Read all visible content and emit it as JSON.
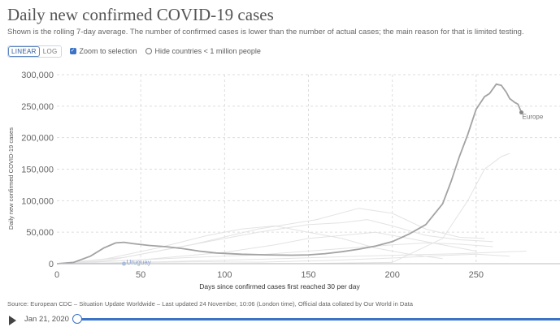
{
  "header": {
    "title": "Daily new confirmed COVID-19 cases",
    "subtitle": "Shown is the rolling 7-day average. The number of confirmed cases is lower than the number of actual cases; the main reason for that is limited testing."
  },
  "controls": {
    "linear_label": "LINEAR",
    "log_label": "LOG",
    "active_scale": "linear",
    "zoom_label": "Zoom to selection",
    "zoom_checked": true,
    "hide_label": "Hide countries < 1 million people",
    "hide_checked": false
  },
  "footer": {
    "source": "Source: European CDC – Situation Update Worldwide – Last updated 24 November, 10:06 (London time), Official data collated by Our World in Data",
    "date": "Jan 21, 2020",
    "timeline_position": 0
  },
  "colors": {
    "highlight_line": "#a3a3a3",
    "background_lines": "#e3e3e3",
    "grid": "#dddddd",
    "accent": "#3b73c7",
    "uruguay": "#a9bde0"
  },
  "chart_data": {
    "type": "line",
    "title": "Daily new confirmed COVID-19 cases",
    "xlabel": "Days since confirmed cases first reached 30 per day",
    "ylabel": "Daily new confirmed COVID-19 cases",
    "xlim": [
      0,
      300
    ],
    "ylim": [
      0,
      300000
    ],
    "x_ticks": [
      0,
      50,
      100,
      150,
      200,
      250
    ],
    "y_ticks": [
      0,
      50000,
      100000,
      150000,
      200000,
      250000,
      300000
    ],
    "x_tick_labels": [
      "0",
      "50",
      "100",
      "150",
      "200",
      "250"
    ],
    "y_tick_labels": [
      "0",
      "50,000",
      "100,000",
      "150,000",
      "200,000",
      "250,000",
      "300,000"
    ],
    "grid": true,
    "series": [
      {
        "name": "Europe",
        "highlighted": true,
        "points": [
          [
            0,
            30
          ],
          [
            10,
            2000
          ],
          [
            20,
            12000
          ],
          [
            28,
            25000
          ],
          [
            35,
            33000
          ],
          [
            40,
            34000
          ],
          [
            45,
            32000
          ],
          [
            55,
            29000
          ],
          [
            65,
            27000
          ],
          [
            75,
            24000
          ],
          [
            85,
            20000
          ],
          [
            95,
            17000
          ],
          [
            110,
            15000
          ],
          [
            125,
            14000
          ],
          [
            140,
            13500
          ],
          [
            150,
            14000
          ],
          [
            160,
            16000
          ],
          [
            170,
            19000
          ],
          [
            180,
            23000
          ],
          [
            190,
            28000
          ],
          [
            200,
            35000
          ],
          [
            210,
            47000
          ],
          [
            220,
            62000
          ],
          [
            230,
            95000
          ],
          [
            235,
            130000
          ],
          [
            240,
            170000
          ],
          [
            245,
            205000
          ],
          [
            250,
            245000
          ],
          [
            255,
            265000
          ],
          [
            258,
            270000
          ],
          [
            262,
            285000
          ],
          [
            265,
            283000
          ],
          [
            268,
            272000
          ],
          [
            270,
            262000
          ],
          [
            273,
            256000
          ],
          [
            275,
            253000
          ],
          [
            277,
            240000
          ]
        ]
      },
      {
        "name": "Uruguay",
        "highlighted": true,
        "points": [
          [
            0,
            30
          ],
          [
            20,
            20
          ],
          [
            35,
            40
          ],
          [
            40,
            30
          ]
        ]
      },
      {
        "name": "",
        "highlighted": false,
        "points": [
          [
            0,
            30
          ],
          [
            150,
            400
          ],
          [
            200,
            2000
          ],
          [
            230,
            40000
          ],
          [
            245,
            100000
          ],
          [
            255,
            150000
          ],
          [
            265,
            170000
          ],
          [
            270,
            175000
          ]
        ]
      },
      {
        "name": "",
        "highlighted": false,
        "points": [
          [
            0,
            30
          ],
          [
            30,
            5000
          ],
          [
            60,
            20000
          ],
          [
            90,
            35000
          ],
          [
            120,
            50000
          ],
          [
            150,
            62000
          ],
          [
            170,
            65000
          ],
          [
            185,
            70000
          ],
          [
            200,
            60000
          ],
          [
            220,
            45000
          ],
          [
            240,
            38000
          ],
          [
            260,
            35000
          ]
        ]
      },
      {
        "name": "",
        "highlighted": false,
        "points": [
          [
            0,
            30
          ],
          [
            40,
            10000
          ],
          [
            80,
            30000
          ],
          [
            120,
            55000
          ],
          [
            155,
            70000
          ],
          [
            180,
            88000
          ],
          [
            200,
            80000
          ],
          [
            220,
            55000
          ],
          [
            240,
            42000
          ],
          [
            255,
            40000
          ]
        ]
      },
      {
        "name": "",
        "highlighted": false,
        "points": [
          [
            0,
            30
          ],
          [
            30,
            8000
          ],
          [
            60,
            25000
          ],
          [
            90,
            45000
          ],
          [
            110,
            55000
          ],
          [
            130,
            60000
          ],
          [
            150,
            50000
          ],
          [
            170,
            40000
          ],
          [
            190,
            25000
          ],
          [
            210,
            15000
          ],
          [
            230,
            8000
          ]
        ]
      },
      {
        "name": "",
        "highlighted": false,
        "points": [
          [
            0,
            30
          ],
          [
            50,
            6000
          ],
          [
            100,
            18000
          ],
          [
            130,
            30000
          ],
          [
            150,
            40000
          ],
          [
            170,
            45000
          ],
          [
            190,
            50000
          ],
          [
            210,
            40000
          ],
          [
            230,
            30000
          ],
          [
            250,
            20000
          ]
        ]
      },
      {
        "name": "",
        "highlighted": false,
        "points": [
          [
            0,
            30
          ],
          [
            40,
            5000
          ],
          [
            80,
            10000
          ],
          [
            120,
            14000
          ],
          [
            160,
            22000
          ],
          [
            200,
            30000
          ],
          [
            220,
            33000
          ],
          [
            240,
            31000
          ],
          [
            260,
            27000
          ]
        ]
      },
      {
        "name": "",
        "highlighted": false,
        "points": [
          [
            0,
            30
          ],
          [
            60,
            3000
          ],
          [
            120,
            7000
          ],
          [
            180,
            12000
          ],
          [
            210,
            14000
          ],
          [
            240,
            16000
          ],
          [
            260,
            18000
          ],
          [
            280,
            20000
          ]
        ]
      },
      {
        "name": "",
        "highlighted": false,
        "points": [
          [
            0,
            30
          ],
          [
            40,
            1500
          ],
          [
            80,
            3000
          ],
          [
            120,
            2500
          ],
          [
            160,
            5000
          ],
          [
            200,
            9000
          ],
          [
            230,
            13000
          ],
          [
            250,
            15000
          ],
          [
            270,
            12000
          ]
        ]
      }
    ]
  }
}
